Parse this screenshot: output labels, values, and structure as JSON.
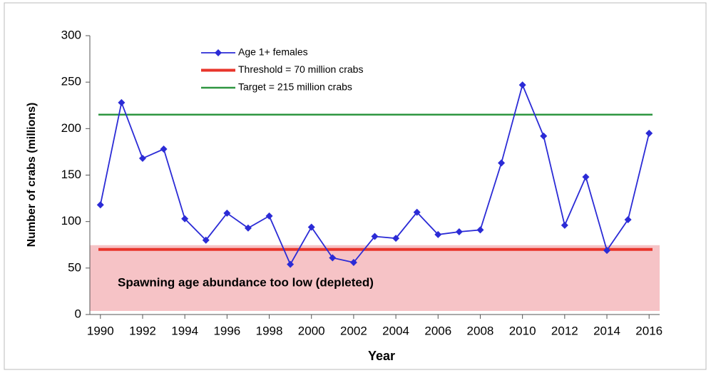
{
  "chart_data": {
    "type": "line",
    "xlabel": "Year",
    "ylabel": "Number of crabs (millions)",
    "x": [
      1990,
      1991,
      1992,
      1993,
      1994,
      1995,
      1996,
      1997,
      1998,
      1999,
      2000,
      2001,
      2002,
      2003,
      2004,
      2005,
      2006,
      2007,
      2008,
      2009,
      2010,
      2011,
      2012,
      2013,
      2014,
      2015,
      2016
    ],
    "series": [
      {
        "name": "Age 1+ females",
        "color": "#2b2bd6",
        "values": [
          118,
          228,
          168,
          178,
          103,
          80,
          109,
          93,
          106,
          54,
          94,
          61,
          56,
          84,
          82,
          110,
          86,
          89,
          91,
          163,
          247,
          192,
          96,
          148,
          69,
          102,
          195
        ]
      }
    ],
    "hlines": [
      {
        "name": "Threshold = 70 million crabs",
        "value": 70,
        "color": "#e8352b"
      },
      {
        "name": "Target = 215 million crabs",
        "value": 215,
        "color": "#2e9640"
      }
    ],
    "annotation": "Spawning age abundance too low  (depleted)",
    "shade_color": "#f4b8bc",
    "xlim": [
      1989.5,
      2016.5
    ],
    "ylim": [
      0,
      300
    ],
    "xticks": [
      1990,
      1992,
      1994,
      1996,
      1998,
      2000,
      2002,
      2004,
      2006,
      2008,
      2010,
      2012,
      2014,
      2016
    ],
    "yticks": [
      0,
      50,
      100,
      150,
      200,
      250,
      300
    ]
  }
}
